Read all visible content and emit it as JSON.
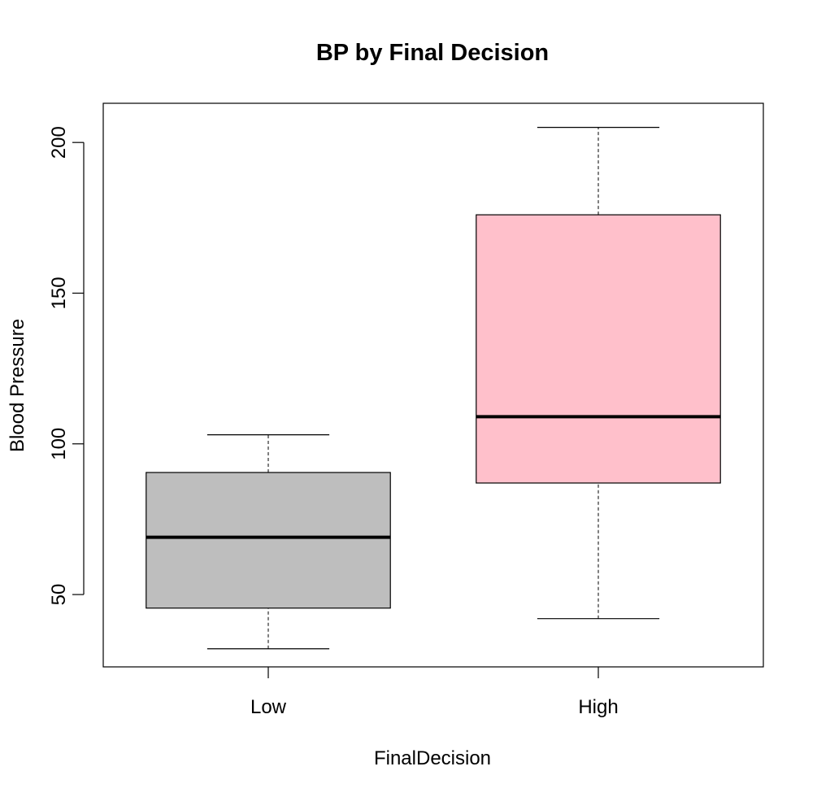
{
  "chart_data": {
    "type": "boxplot",
    "title": "BP by Final Decision",
    "xlabel": "FinalDecision",
    "ylabel": "Blood Pressure",
    "ylim": [
      26,
      213
    ],
    "yticks": [
      50,
      100,
      150,
      200
    ],
    "ytick_labels": [
      "50",
      "100",
      "150",
      "200"
    ],
    "grid": false,
    "categories": [
      "Low",
      "High"
    ],
    "boxes": [
      {
        "category": "Low",
        "whisker_low": 32,
        "q1": 45.5,
        "median": 69,
        "q3": 90.5,
        "whisker_high": 103,
        "color": "#bebebe"
      },
      {
        "category": "High",
        "whisker_low": 42,
        "q1": 87,
        "median": 109,
        "q3": 176,
        "whisker_high": 205,
        "color": "#ffc0cb"
      }
    ]
  }
}
